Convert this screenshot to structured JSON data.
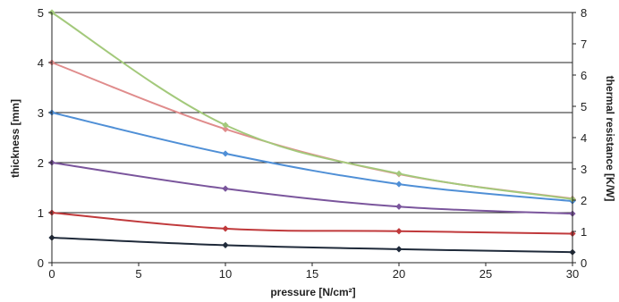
{
  "chart_data": {
    "type": "line",
    "title": "",
    "xlabel": "pressure [N/cm²]",
    "ylabel": "thickness [mm]",
    "y2label": "thermal resistance [K/W]",
    "xlim": [
      0,
      30
    ],
    "ylim": [
      0,
      5
    ],
    "y2lim": [
      0,
      8
    ],
    "x_ticks": [
      "0",
      "5",
      "10",
      "15",
      "20",
      "25",
      "30"
    ],
    "y_ticks": [
      "0",
      "1",
      "2",
      "3",
      "4",
      "5"
    ],
    "y2_ticks": [
      "0",
      "1",
      "2",
      "3",
      "4",
      "5",
      "6",
      "7",
      "8"
    ],
    "grid": "horizontal",
    "legend": "none",
    "x": [
      0,
      10,
      20,
      30
    ],
    "series": [
      {
        "values": [
          0.5,
          0.35,
          0.27,
          0.21
        ],
        "color": "#1f2a3a"
      },
      {
        "values": [
          1.0,
          0.68,
          0.63,
          0.58
        ],
        "color": "#c0393b"
      },
      {
        "values": [
          2.0,
          1.48,
          1.12,
          0.98
        ],
        "color": "#7a559c"
      },
      {
        "values": [
          3.0,
          2.18,
          1.57,
          1.23
        ],
        "color": "#4f8fd6"
      },
      {
        "values": [
          4.0,
          2.67,
          1.77,
          1.28
        ],
        "color": "#e08c8c"
      },
      {
        "values": [
          5.0,
          2.75,
          1.78,
          1.27
        ],
        "color": "#a3c97b"
      }
    ]
  }
}
